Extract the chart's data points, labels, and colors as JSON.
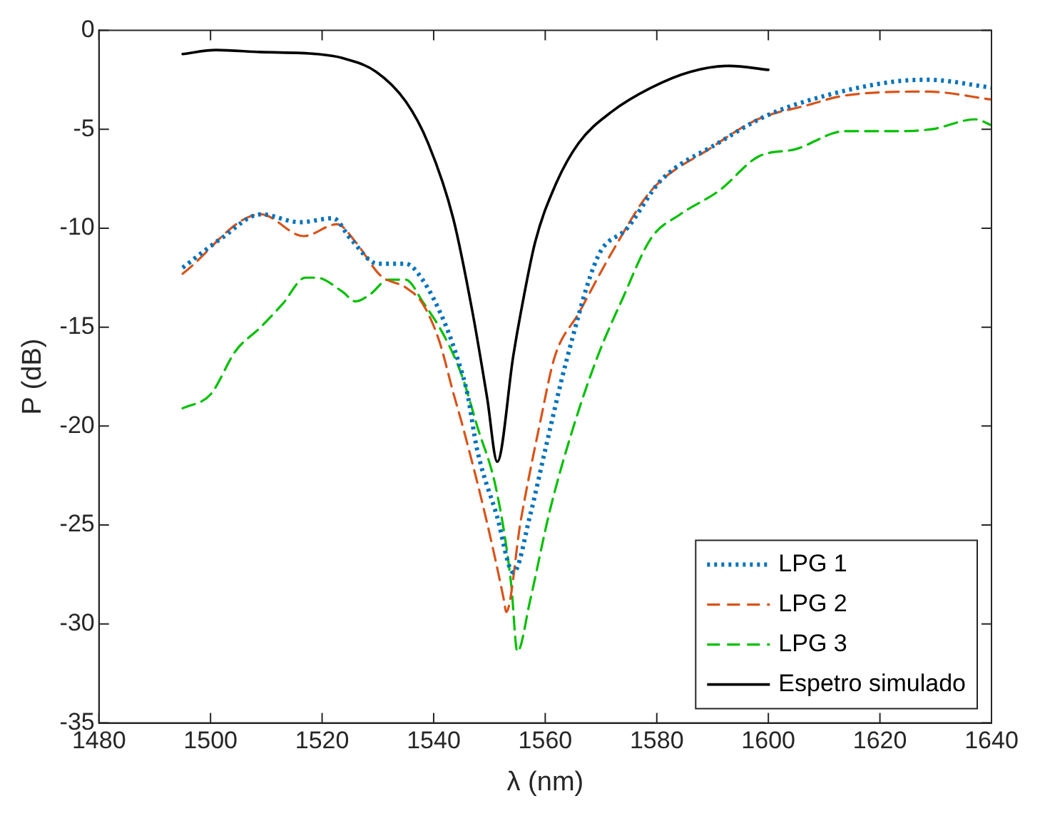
{
  "chart_data": {
    "type": "line",
    "xlabel": "λ (nm)",
    "ylabel": "P (dB)",
    "xlim": [
      1480,
      1640
    ],
    "xticks": [
      1480,
      1500,
      1520,
      1540,
      1560,
      1580,
      1600,
      1620,
      1640
    ],
    "ylim": [
      -35,
      0
    ],
    "yticks": [
      -35,
      -30,
      -25,
      -20,
      -15,
      -10,
      -5,
      0
    ],
    "legend": "bottom right",
    "marker": "none",
    "series": [
      {
        "name": "LPG 1",
        "color": "#0072bd",
        "line_style": "dotted",
        "x": [
          1495,
          1502,
          1509,
          1516,
          1522,
          1525,
          1530,
          1535,
          1538,
          1542,
          1544.4,
          1546,
          1547.8,
          1551.3,
          1554.3,
          1557.3,
          1560,
          1563.8,
          1569.5,
          1574.7,
          1580.7,
          1591,
          1599.8,
          1610.3,
          1622.4,
          1628.5,
          1640
        ],
        "values": [
          -12.0,
          -10.5,
          -9.3,
          -9.7,
          -9.5,
          -10.5,
          -11.8,
          -11.8,
          -12.6,
          -14.8,
          -16.7,
          -18.3,
          -21.2,
          -24.5,
          -27.4,
          -24.5,
          -21.2,
          -16.7,
          -11.4,
          -10.0,
          -7.6,
          -5.7,
          -4.3,
          -3.3,
          -2.6,
          -2.5,
          -2.9
        ]
      },
      {
        "name": "LPG 2",
        "color": "#d95319",
        "line_style": "dashed",
        "x": [
          1495,
          1509,
          1516.7,
          1522.7,
          1526,
          1530.5,
          1535,
          1538,
          1541,
          1543.5,
          1545.2,
          1549.5,
          1552.6,
          1553,
          1555.6,
          1559.1,
          1561.7,
          1566,
          1572,
          1579,
          1589.4,
          1598.1,
          1606.8,
          1613.7,
          1628.5,
          1640
        ],
        "values": [
          -12.3,
          -9.3,
          -10.4,
          -9.8,
          -10.7,
          -12.4,
          -13.0,
          -13.8,
          -15.7,
          -18.3,
          -20.0,
          -24.8,
          -28.8,
          -29.4,
          -24.8,
          -19.8,
          -16.5,
          -14.3,
          -11.2,
          -8.1,
          -6.0,
          -4.5,
          -3.8,
          -3.3,
          -3.1,
          -3.5
        ]
      },
      {
        "name": "LPG 3",
        "color": "#00c000",
        "line_style": "dashed",
        "x": [
          1495,
          1500,
          1504.5,
          1509,
          1513,
          1517,
          1519,
          1523.6,
          1526,
          1528.8,
          1531.8,
          1535,
          1538,
          1542,
          1545,
          1547.8,
          1551.3,
          1553.9,
          1555,
          1557.3,
          1560.8,
          1565.1,
          1569.5,
          1573.8,
          1579,
          1584.2,
          1591.2,
          1598.1,
          1605,
          1613.7,
          1622.4,
          1629.3,
          1637.1,
          1640
        ],
        "values": [
          -19.1,
          -18.4,
          -16.2,
          -15.0,
          -13.8,
          -12.5,
          -12.5,
          -13.2,
          -13.7,
          -13.3,
          -12.6,
          -12.6,
          -13.7,
          -15.5,
          -17.4,
          -20.0,
          -23.3,
          -28.0,
          -31.4,
          -28.8,
          -24.3,
          -20.0,
          -16.4,
          -13.6,
          -10.5,
          -9.3,
          -8.1,
          -6.4,
          -6.0,
          -5.1,
          -5.1,
          -5.0,
          -4.5,
          -4.8
        ]
      },
      {
        "name": "Espetro simulado",
        "color": "#000000",
        "line_style": "solid",
        "x": [
          1495,
          1501,
          1508.8,
          1519,
          1523.6,
          1529.7,
          1535,
          1539,
          1543.5,
          1547,
          1549.6,
          1551.4,
          1554.3,
          1555.6,
          1558.2,
          1561.7,
          1566,
          1572,
          1579,
          1586,
          1592.9,
          1600
        ],
        "values": [
          -1.2,
          -1.0,
          -1.1,
          -1.2,
          -1.4,
          -2.1,
          -3.6,
          -5.7,
          -9.5,
          -14.3,
          -18.6,
          -21.8,
          -16.4,
          -14.3,
          -10.7,
          -7.9,
          -5.7,
          -4.1,
          -2.9,
          -2.1,
          -1.8,
          -2.0
        ]
      }
    ]
  }
}
